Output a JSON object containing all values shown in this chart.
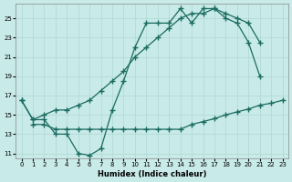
{
  "xlabel": "Humidex (Indice chaleur)",
  "ylabel": "",
  "bg_color": "#c8eae8",
  "grid_color": "#afd8d4",
  "line_color": "#1a6b60",
  "xlim": [
    -0.5,
    23.5
  ],
  "ylim": [
    10.5,
    26.5
  ],
  "xticks": [
    0,
    1,
    2,
    3,
    4,
    5,
    6,
    7,
    8,
    9,
    10,
    11,
    12,
    13,
    14,
    15,
    16,
    17,
    18,
    19,
    20,
    21,
    22,
    23
  ],
  "yticks": [
    11,
    13,
    15,
    17,
    19,
    21,
    23,
    25
  ],
  "line1_x": [
    0,
    1,
    2,
    3,
    4,
    5,
    6,
    7,
    8,
    9,
    10,
    11,
    12,
    13,
    14,
    15,
    16,
    17,
    18,
    19,
    20,
    21
  ],
  "line1_y": [
    16.5,
    14.5,
    14.5,
    13.0,
    13.0,
    11.0,
    10.8,
    11.5,
    15.5,
    18.5,
    22.0,
    24.5,
    24.5,
    24.5,
    26.0,
    24.5,
    26.0,
    26.0,
    25.0,
    24.5,
    22.5,
    19.0
  ],
  "line2_x": [
    0,
    1,
    2,
    3,
    4,
    5,
    6,
    7,
    8,
    9,
    10,
    11,
    12,
    13,
    14,
    15,
    16,
    17,
    18,
    19,
    20,
    21
  ],
  "line2_y": [
    16.5,
    14.5,
    15.0,
    15.5,
    15.5,
    16.0,
    16.5,
    17.5,
    18.5,
    19.5,
    21.0,
    22.0,
    23.0,
    24.0,
    25.0,
    25.5,
    25.5,
    26.0,
    25.5,
    25.0,
    24.5,
    22.5
  ],
  "line3_x": [
    1,
    2,
    3,
    4,
    5,
    6,
    7,
    8,
    9,
    10,
    11,
    12,
    13,
    14,
    15,
    16,
    17,
    18,
    19,
    20,
    21,
    22,
    23
  ],
  "line3_y": [
    14.0,
    14.0,
    13.5,
    13.5,
    13.5,
    13.5,
    13.5,
    13.5,
    13.5,
    13.5,
    13.5,
    13.5,
    13.5,
    13.5,
    14.0,
    14.3,
    14.6,
    15.0,
    15.3,
    15.6,
    16.0,
    16.2,
    16.5
  ]
}
